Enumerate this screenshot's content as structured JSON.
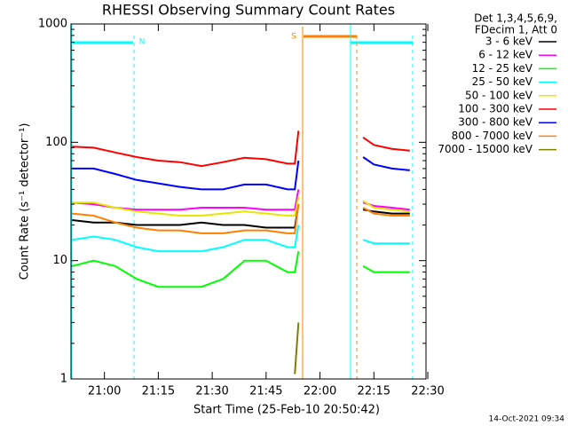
{
  "chart_data": {
    "type": "line",
    "title": "RHESSI Observing Summary Count Rates",
    "x_label": "Start Time (25-Feb-10 20:50:42)",
    "y_label": "Count Rate (s⁻¹ detector⁻¹)",
    "legend_title": [
      "Det 1,3,4,5,6,9,",
      "FDecim 1, Att 0"
    ],
    "footer": "14-Oct-2021 09:34",
    "annotations": [
      "N",
      "S"
    ],
    "log_scale": true,
    "legend": "right",
    "xlim": [
      "20:50:42",
      "22:29:30"
    ],
    "xticks": [
      "21:00",
      "21:15",
      "21:30",
      "21:45",
      "22:00",
      "22:15",
      "22:30"
    ],
    "ylim": [
      1,
      1000
    ],
    "yticks": [
      1,
      10,
      100,
      1000
    ],
    "x": [
      "20:51",
      "20:57",
      "21:03",
      "21:09",
      "21:15",
      "21:21",
      "21:27",
      "21:33",
      "21:39",
      "21:45",
      "21:51",
      "21:53",
      "21:54",
      "22:03",
      "22:12",
      "22:15",
      "22:20",
      "22:25"
    ],
    "series": [
      {
        "name": "3 - 6 keV",
        "color": "#000000",
        "values": [
          22,
          21,
          21,
          20,
          20,
          20,
          21,
          20,
          20,
          19,
          19,
          19,
          30,
          null,
          27,
          26,
          25,
          25
        ]
      },
      {
        "name": "6 - 12 keV",
        "color": "#ff00ff",
        "values": [
          31,
          30,
          28,
          27,
          27,
          27,
          28,
          28,
          28,
          27,
          27,
          27,
          40,
          null,
          31,
          29,
          28,
          27
        ]
      },
      {
        "name": "12 - 25 keV",
        "color": "#00ff00",
        "values": [
          9,
          10,
          9,
          7,
          6,
          6,
          6,
          7,
          10,
          10,
          8,
          8,
          12,
          null,
          9,
          8,
          8,
          8
        ]
      },
      {
        "name": "25 - 50 keV",
        "color": "#00ffff",
        "values": [
          15,
          16,
          15,
          13,
          12,
          12,
          12,
          13,
          15,
          15,
          13,
          13,
          20,
          null,
          15,
          14,
          14,
          14
        ]
      },
      {
        "name": "50 - 100 keV",
        "color": "#e6e600",
        "values": [
          31,
          31,
          28,
          26,
          25,
          24,
          24,
          25,
          26,
          25,
          24,
          24,
          35,
          null,
          32,
          28,
          27,
          26
        ]
      },
      {
        "name": "100 - 300 keV",
        "color": "#ff0000",
        "values": [
          92,
          90,
          82,
          75,
          70,
          68,
          63,
          68,
          74,
          72,
          66,
          66,
          125,
          null,
          110,
          95,
          88,
          85
        ]
      },
      {
        "name": "300 - 800 keV",
        "color": "#0000ff",
        "values": [
          60,
          60,
          54,
          48,
          45,
          42,
          40,
          40,
          44,
          44,
          40,
          40,
          70,
          null,
          75,
          65,
          60,
          58
        ]
      },
      {
        "name": "800 - 7000 keV",
        "color": "#ff8000",
        "values": [
          25,
          24,
          21,
          19,
          18,
          18,
          17,
          17,
          18,
          18,
          17,
          17,
          30,
          null,
          28,
          25,
          24,
          24
        ]
      },
      {
        "name": "7000 - 15000 keV",
        "color": "#808000",
        "values": [
          null,
          null,
          null,
          null,
          null,
          null,
          null,
          null,
          null,
          null,
          null,
          1.1,
          3,
          null,
          null,
          null,
          null,
          null
        ]
      }
    ]
  }
}
